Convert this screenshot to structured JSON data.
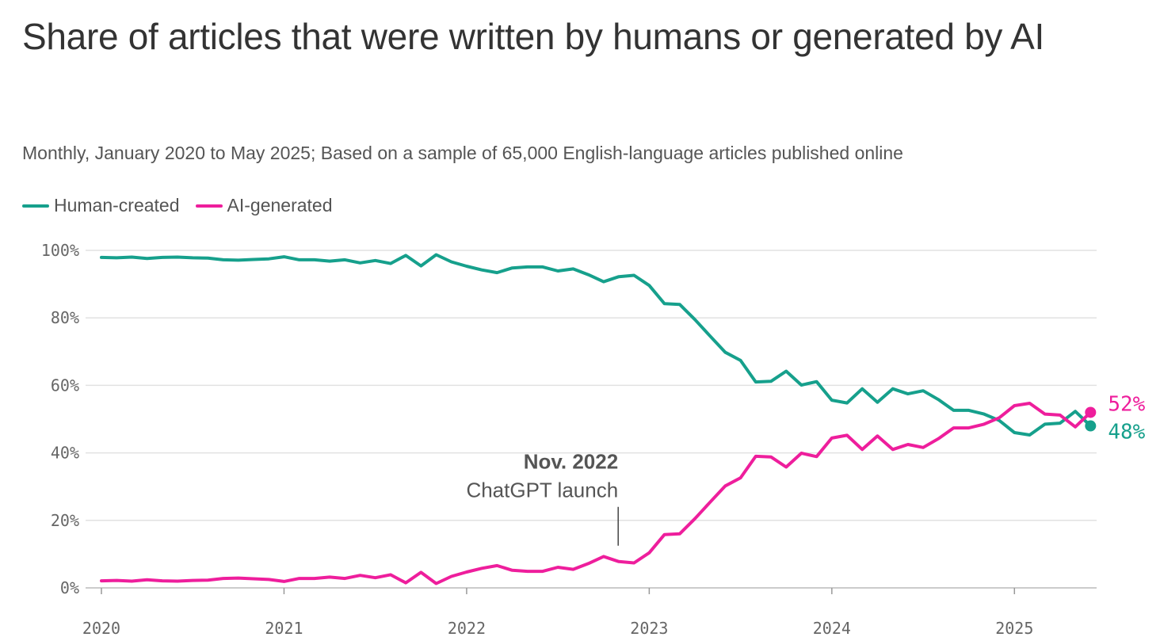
{
  "header": {
    "title": "Share of articles that were written by humans or generated by AI",
    "subtitle": "Monthly, January 2020 to May 2025; Based on a sample of 65,000 English-language articles published online"
  },
  "colors": {
    "human": "#16a08c",
    "ai": "#ee1e9c",
    "grid": "#e2e2e2",
    "axis": "#bbbbbb"
  },
  "chart_data": {
    "type": "line",
    "title": "Share of articles that were written by humans or generated by AI",
    "subtitle": "Monthly, January 2020 to May 2025; Based on a sample of 65,000 English-language articles published online",
    "xlabel": "",
    "ylabel": "",
    "x_start": "2020-01",
    "x_end": "2025-05",
    "xlim": [
      2020.0,
      2025.45
    ],
    "ylim": [
      0,
      100
    ],
    "grid": true,
    "legend_position": "top-left",
    "x_ticks": [
      {
        "value": 2020,
        "label": "2020"
      },
      {
        "value": 2021,
        "label": "2021"
      },
      {
        "value": 2022,
        "label": "2022"
      },
      {
        "value": 2023,
        "label": "2023"
      },
      {
        "value": 2024,
        "label": "2024"
      },
      {
        "value": 2025,
        "label": "2025"
      }
    ],
    "y_ticks": [
      {
        "value": 0,
        "label": "0%"
      },
      {
        "value": 20,
        "label": "20%"
      },
      {
        "value": 40,
        "label": "40%"
      },
      {
        "value": 60,
        "label": "60%"
      },
      {
        "value": 80,
        "label": "80%"
      },
      {
        "value": 100,
        "label": "100%"
      }
    ],
    "series": [
      {
        "name": "Human-created",
        "key": "human",
        "end_label": "48%",
        "values": [
          97.9,
          97.8,
          98.0,
          97.6,
          97.9,
          98.0,
          97.8,
          97.7,
          97.2,
          97.1,
          97.3,
          97.5,
          98.1,
          97.2,
          97.2,
          96.8,
          97.2,
          96.3,
          97.0,
          96.1,
          98.5,
          95.4,
          98.7,
          96.6,
          95.3,
          94.2,
          93.4,
          94.8,
          95.1,
          95.1,
          93.9,
          94.5,
          92.8,
          90.7,
          92.2,
          92.6,
          89.6,
          84.2,
          84.0,
          79.5,
          74.6,
          69.8,
          67.4,
          61.0,
          61.2,
          64.2,
          60.1,
          61.1,
          55.6,
          54.8,
          59.0,
          55.0,
          59.0,
          57.5,
          58.4,
          55.8,
          52.6,
          52.6,
          51.5,
          49.6,
          46.0,
          45.3,
          48.5,
          48.8,
          52.3,
          48.0
        ]
      },
      {
        "name": "AI-generated",
        "key": "ai",
        "end_label": "52%",
        "values": [
          2.1,
          2.2,
          2.0,
          2.4,
          2.1,
          2.0,
          2.2,
          2.3,
          2.8,
          2.9,
          2.7,
          2.5,
          1.9,
          2.8,
          2.8,
          3.2,
          2.8,
          3.7,
          3.0,
          3.9,
          1.5,
          4.6,
          1.3,
          3.4,
          4.7,
          5.8,
          6.6,
          5.2,
          4.9,
          4.9,
          6.1,
          5.5,
          7.2,
          9.3,
          7.8,
          7.4,
          10.4,
          15.8,
          16.0,
          20.5,
          25.4,
          30.2,
          32.6,
          39.0,
          38.8,
          35.8,
          39.9,
          38.9,
          44.4,
          45.2,
          41.0,
          45.0,
          41.0,
          42.5,
          41.6,
          44.2,
          47.4,
          47.4,
          48.5,
          50.4,
          54.0,
          54.7,
          51.5,
          51.2,
          47.7,
          52.0
        ]
      }
    ],
    "annotations": [
      {
        "x": 2022.83,
        "title": "Nov. 2022",
        "text": "ChatGPT launch"
      }
    ]
  }
}
